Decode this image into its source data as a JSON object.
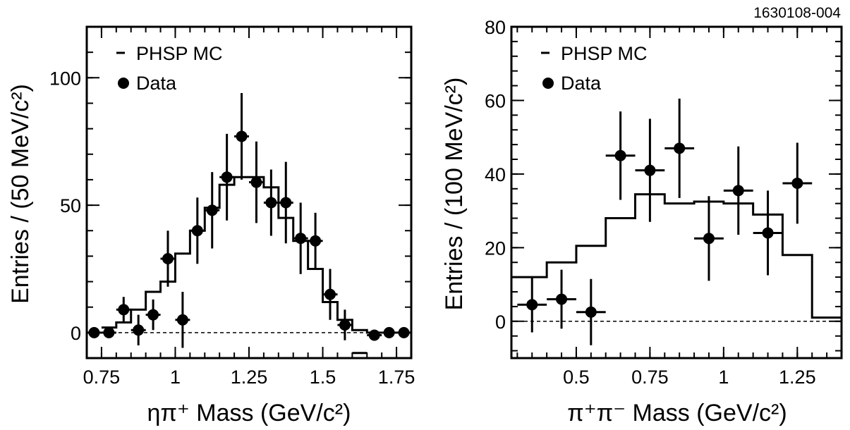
{
  "figure_id": "1630108-004",
  "chart_data": [
    {
      "type": "scatter",
      "xlabel": "ηπ⁺ Mass (GeV/c²)",
      "ylabel": "Entries / (50 MeV/c²)",
      "xlim": [
        0.7,
        1.8
      ],
      "ylim": [
        -10,
        120
      ],
      "x_ticks": [
        0.75,
        1,
        1.25,
        1.5,
        1.75
      ],
      "x_tick_labels": [
        "0.75",
        "1",
        "1.25",
        "1.5",
        "1.75"
      ],
      "y_ticks": [
        0,
        50,
        100
      ],
      "y_tick_labels": [
        "0",
        "50",
        "100"
      ],
      "grid": false,
      "legend": {
        "position": "top-left",
        "entries": [
          "PHSP MC",
          "Data"
        ]
      },
      "zero_line": true,
      "series": [
        {
          "name": "PHSP MC",
          "kind": "histogram",
          "bins": [
            0.75,
            0.8,
            0.85,
            0.9,
            0.95,
            1.0,
            1.05,
            1.1,
            1.15,
            1.2,
            1.25,
            1.3,
            1.35,
            1.4,
            1.45,
            1.5,
            1.55,
            1.6,
            1.65,
            1.7
          ],
          "values": [
            2,
            4,
            9,
            16,
            20,
            31,
            40,
            49,
            58,
            61,
            61,
            57,
            45,
            36,
            25,
            12,
            5,
            1,
            0
          ]
        },
        {
          "name": "Data",
          "kind": "points",
          "x": [
            0.725,
            0.775,
            0.825,
            0.875,
            0.925,
            0.975,
            1.025,
            1.075,
            1.125,
            1.175,
            1.225,
            1.275,
            1.325,
            1.375,
            1.425,
            1.475,
            1.525,
            1.575,
            1.625,
            1.675,
            1.725,
            1.775
          ],
          "y": [
            0,
            0,
            9,
            1,
            7,
            29,
            5,
            40,
            48,
            61,
            77,
            59,
            51,
            51,
            37,
            36,
            15,
            3,
            -8,
            -1,
            0,
            0
          ],
          "yerr": [
            0,
            1.5,
            5,
            6,
            6,
            11,
            11,
            13,
            15,
            17,
            17,
            16,
            13,
            16,
            14,
            11,
            10,
            6,
            0,
            0,
            0,
            0
          ],
          "xerr": 0.025,
          "markers": [
            true,
            true,
            true,
            true,
            true,
            true,
            true,
            true,
            true,
            true,
            true,
            true,
            true,
            true,
            true,
            true,
            true,
            true,
            false,
            true,
            true,
            true
          ]
        }
      ]
    },
    {
      "type": "scatter",
      "xlabel": "π⁺π⁻ Mass (GeV/c²)",
      "ylabel": "Entries / (100 MeV/c²)",
      "xlim": [
        0.28,
        1.4
      ],
      "ylim": [
        -10,
        80
      ],
      "x_ticks": [
        0.5,
        0.75,
        1,
        1.25
      ],
      "x_tick_labels": [
        "0.5",
        "0.75",
        "1",
        "1.25"
      ],
      "y_ticks": [
        0,
        20,
        40,
        60,
        80
      ],
      "y_tick_labels": [
        "0",
        "20",
        "40",
        "60",
        "80"
      ],
      "grid": false,
      "legend": {
        "position": "top-left",
        "entries": [
          "PHSP MC",
          "Data"
        ]
      },
      "zero_line": true,
      "series": [
        {
          "name": "PHSP MC",
          "kind": "histogram",
          "bins": [
            0.28,
            0.4,
            0.5,
            0.6,
            0.7,
            0.8,
            0.9,
            1.0,
            1.1,
            1.2,
            1.3,
            1.4
          ],
          "values": [
            12,
            16,
            20.5,
            28,
            34.5,
            32,
            32.5,
            32,
            29,
            18,
            1
          ]
        },
        {
          "name": "Data",
          "kind": "points",
          "x": [
            0.35,
            0.45,
            0.55,
            0.65,
            0.75,
            0.85,
            0.95,
            1.05,
            1.15,
            1.25
          ],
          "y": [
            4.5,
            6,
            2.5,
            45,
            41,
            47,
            22.5,
            35.5,
            24,
            37.5
          ],
          "yerr": [
            7.5,
            8,
            9,
            12,
            14,
            13.5,
            11.5,
            12,
            11.5,
            11
          ],
          "xerr": 0.05,
          "markers": [
            true,
            true,
            true,
            true,
            true,
            true,
            true,
            true,
            true,
            true
          ]
        }
      ]
    }
  ]
}
